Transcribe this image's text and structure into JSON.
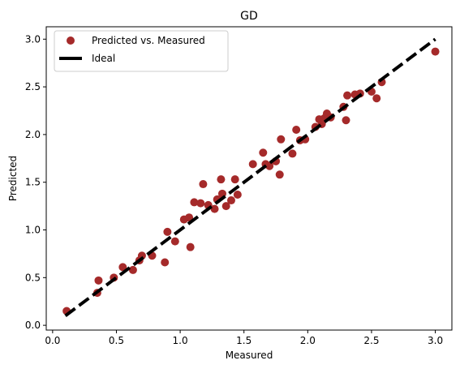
{
  "chart_data": {
    "type": "scatter",
    "title": "GD",
    "xlabel": "Measured",
    "ylabel": "Predicted",
    "xlim": [
      -0.05,
      3.13
    ],
    "ylim": [
      -0.05,
      3.13
    ],
    "xticks": [
      "0.0",
      "0.5",
      "1.0",
      "1.5",
      "2.0",
      "2.5",
      "3.0"
    ],
    "yticks": [
      "0.0",
      "0.5",
      "1.0",
      "1.5",
      "2.0",
      "2.5",
      "3.0"
    ],
    "grid": false,
    "legend_position": "top-left",
    "colors": {
      "points": "#a52a2a",
      "ideal": "#000000"
    },
    "series": [
      {
        "name": "Predicted vs. Measured",
        "type": "scatter",
        "points": [
          [
            0.11,
            0.15
          ],
          [
            0.35,
            0.34
          ],
          [
            0.36,
            0.47
          ],
          [
            0.48,
            0.5
          ],
          [
            0.55,
            0.61
          ],
          [
            0.63,
            0.58
          ],
          [
            0.68,
            0.68
          ],
          [
            0.7,
            0.73
          ],
          [
            0.78,
            0.73
          ],
          [
            0.88,
            0.66
          ],
          [
            0.9,
            0.98
          ],
          [
            0.96,
            0.88
          ],
          [
            1.03,
            1.11
          ],
          [
            1.07,
            1.13
          ],
          [
            1.08,
            0.82
          ],
          [
            1.11,
            1.29
          ],
          [
            1.16,
            1.28
          ],
          [
            1.18,
            1.48
          ],
          [
            1.22,
            1.26
          ],
          [
            1.27,
            1.22
          ],
          [
            1.29,
            1.32
          ],
          [
            1.32,
            1.53
          ],
          [
            1.33,
            1.38
          ],
          [
            1.36,
            1.25
          ],
          [
            1.4,
            1.31
          ],
          [
            1.43,
            1.53
          ],
          [
            1.45,
            1.37
          ],
          [
            1.57,
            1.69
          ],
          [
            1.65,
            1.81
          ],
          [
            1.67,
            1.69
          ],
          [
            1.7,
            1.67
          ],
          [
            1.75,
            1.72
          ],
          [
            1.78,
            1.58
          ],
          [
            1.79,
            1.95
          ],
          [
            1.88,
            1.8
          ],
          [
            1.91,
            2.05
          ],
          [
            1.94,
            1.94
          ],
          [
            1.98,
            1.95
          ],
          [
            2.06,
            2.08
          ],
          [
            2.09,
            2.16
          ],
          [
            2.11,
            2.11
          ],
          [
            2.13,
            2.17
          ],
          [
            2.15,
            2.22
          ],
          [
            2.18,
            2.18
          ],
          [
            2.28,
            2.29
          ],
          [
            2.3,
            2.15
          ],
          [
            2.31,
            2.41
          ],
          [
            2.37,
            2.42
          ],
          [
            2.41,
            2.43
          ],
          [
            2.5,
            2.45
          ],
          [
            2.54,
            2.38
          ],
          [
            2.58,
            2.55
          ],
          [
            3.0,
            2.87
          ]
        ]
      },
      {
        "name": "Ideal",
        "type": "line",
        "style": "dashed",
        "points": [
          [
            0.1,
            0.1
          ],
          [
            3.0,
            3.0
          ]
        ]
      }
    ]
  }
}
